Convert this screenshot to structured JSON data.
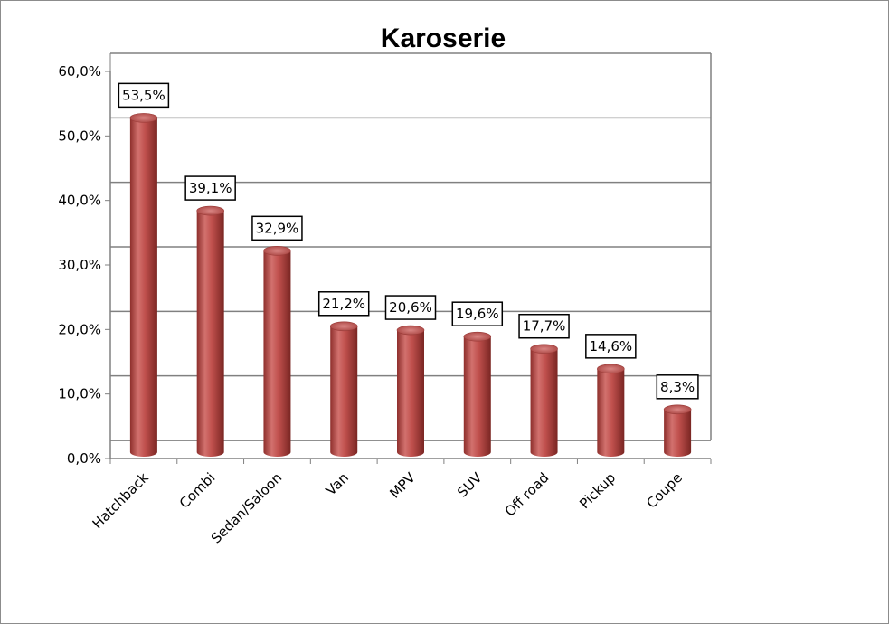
{
  "chart_data": {
    "type": "bar",
    "title": "Karoserie",
    "categories": [
      "Hatchback",
      "Combi",
      "Sedan/Saloon",
      "Van",
      "MPV",
      "SUV",
      "Off road",
      "Pickup",
      "Coupe"
    ],
    "values": [
      53.5,
      39.1,
      32.9,
      21.2,
      20.6,
      19.6,
      17.7,
      14.6,
      8.3
    ],
    "data_labels": [
      "53,5%",
      "39,1%",
      "32,9%",
      "21,2%",
      "20,6%",
      "19,6%",
      "17,7%",
      "14,6%",
      "8,3%"
    ],
    "ylim": [
      0,
      60
    ],
    "yticks": [
      0,
      10,
      20,
      30,
      40,
      50,
      60
    ],
    "ytick_labels": [
      "0,0%",
      "10,0%",
      "20,0%",
      "30,0%",
      "40,0%",
      "50,0%",
      "60,0%"
    ],
    "xlabel": "",
    "ylabel": "",
    "grid": true,
    "legend": "none",
    "bar_color": "#c0504d",
    "style": "3d-cylinder"
  }
}
